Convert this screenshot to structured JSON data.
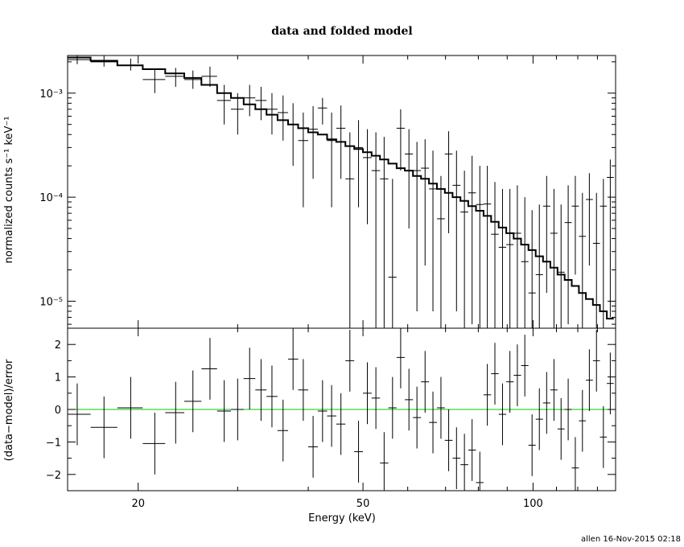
{
  "footer": "allen 16-Nov-2015 02:18",
  "chart_data": [
    {
      "type": "scatter",
      "title": "data and folded model",
      "xlabel": "",
      "ylabel": "normalized counts s⁻¹ keV⁻¹",
      "xscale": "log",
      "yscale": "log",
      "xlim": [
        15,
        140
      ],
      "ylim": [
        5.5e-06,
        0.0023
      ],
      "grid": false,
      "ytick_labels": [
        "10⁻³",
        "10⁻⁴",
        "10⁻⁵"
      ],
      "series": [
        {
          "kind": "data-crosses",
          "x": [
            15.6,
            17.4,
            19.4,
            21.4,
            23.3,
            25.0,
            26.8,
            28.4,
            30.0,
            31.5,
            33.0,
            34.5,
            36.1,
            37.6,
            39.2,
            40.8,
            42.4,
            44.0,
            45.7,
            47.4,
            49.1,
            50.9,
            52.7,
            54.5,
            56.4,
            58.3,
            60.3,
            62.3,
            64.4,
            66.5,
            68.7,
            70.9,
            73.2,
            75.6,
            78.0,
            80.5,
            83.0,
            85.6,
            88.3,
            91.0,
            93.8,
            96.7,
            99.6,
            102.6,
            105.7,
            108.9,
            112.1,
            115.4,
            118.8,
            122.3,
            125.8,
            129.5,
            133.2,
            137.0
          ],
          "y": [
            0.0021,
            0.002,
            0.00185,
            0.00135,
            0.00145,
            0.00135,
            0.00145,
            0.00085,
            0.0007,
            0.0009,
            0.00085,
            0.0007,
            0.00065,
            0.0005,
            0.00035,
            0.00045,
            0.00072,
            0.00035,
            0.00046,
            0.00015,
            0.0003,
            0.00024,
            0.00018,
            0.00015,
            1.7e-05,
            0.00046,
            0.00026,
            0.00018,
            0.00019,
            0.00012,
            6.2e-05,
            0.00026,
            0.00013,
            7.2e-05,
            0.00011,
            8.5e-05,
            8.6e-05,
            4.4e-05,
            3.3e-05,
            3.5e-05,
            4.5e-05,
            2.4e-05,
            1.2e-05,
            1.8e-05,
            8.2e-05,
            4.5e-05,
            1.9e-05,
            5.7e-05,
            8.2e-05,
            4.2e-05,
            9.5e-05,
            3.6e-05,
            8.2e-05,
            0.000155
          ],
          "ylow": [
            0.0019,
            0.0018,
            0.00165,
            0.001,
            0.00115,
            0.0011,
            0.00115,
            0.0005,
            0.0004,
            0.0006,
            0.00055,
            0.0004,
            0.00035,
            0.0002,
            8e-05,
            0.00015,
            0.0005,
            8e-05,
            0.00015,
            5.5e-06,
            8e-05,
            5.5e-05,
            5.5e-06,
            5.5e-06,
            5.5e-06,
            0.00018,
            5e-05,
            8e-06,
            2.2e-05,
            8e-06,
            5.5e-06,
            4.5e-05,
            8e-06,
            5.5e-06,
            6e-06,
            5.5e-06,
            5.5e-06,
            5.5e-06,
            5.5e-06,
            5.5e-06,
            5.5e-06,
            5.5e-06,
            5.5e-06,
            5.5e-06,
            1.2e-05,
            5.5e-06,
            5.5e-06,
            6e-06,
            1.8e-05,
            5.5e-06,
            2.2e-05,
            5.5e-06,
            5.5e-06,
            7e-06
          ],
          "yhigh": [
            0.0023,
            0.0023,
            0.00215,
            0.0017,
            0.00175,
            0.00165,
            0.0018,
            0.0012,
            0.001,
            0.0012,
            0.00115,
            0.001,
            0.00095,
            0.0008,
            0.00065,
            0.00075,
            0.0009,
            0.00065,
            0.00076,
            0.00042,
            0.00055,
            0.00045,
            0.00042,
            0.00038,
            0.00015,
            0.0007,
            0.00045,
            0.00034,
            0.00036,
            0.00028,
            0.00016,
            0.00043,
            0.00028,
            0.00018,
            0.00025,
            0.0002,
            0.0002,
            0.00014,
            0.00012,
            0.00012,
            0.00013,
            0.0001,
            7.5e-05,
            8.5e-05,
            0.00016,
            0.00012,
            8.5e-05,
            0.00013,
            0.00016,
            0.00011,
            0.00017,
            0.00011,
            0.00015,
            0.00023
          ]
        },
        {
          "kind": "folded-model-step",
          "y": [
            0.0022,
            0.00205,
            0.00185,
            0.0017,
            0.00155,
            0.0014,
            0.0012,
            0.001,
            0.0009,
            0.00078,
            0.0007,
            0.00062,
            0.00055,
            0.0005,
            0.00046,
            0.00042,
            0.0004,
            0.00036,
            0.00034,
            0.00031,
            0.00029,
            0.00027,
            0.00025,
            0.00023,
            0.00021,
            0.00019,
            0.00018,
            0.00016,
            0.00015,
            0.000135,
            0.00012,
            0.00011,
            0.0001,
            9.2e-05,
            8.2e-05,
            7.4e-05,
            6.6e-05,
            5.8e-05,
            5.1e-05,
            4.5e-05,
            4e-05,
            3.5e-05,
            3.1e-05,
            2.7e-05,
            2.4e-05,
            2.1e-05,
            1.8e-05,
            1.6e-05,
            1.4e-05,
            1.2e-05,
            1.05e-05,
            9.2e-06,
            8e-06,
            6.8e-06
          ]
        }
      ]
    },
    {
      "type": "scatter",
      "title": "",
      "xlabel": "Energy (keV)",
      "ylabel": "(data−model)/error",
      "xscale": "log",
      "xlim": [
        15,
        140
      ],
      "ylim": [
        -2.5,
        2.5
      ],
      "grid": false,
      "xtick_labels": [
        "20",
        "50",
        "100"
      ],
      "ytick_labels": [
        "2",
        "1",
        "0",
        "−1",
        "−2"
      ],
      "reference_line": {
        "y": 0,
        "color": "#00cc00"
      },
      "series": [
        {
          "kind": "residual-crosses",
          "y": [
            -0.15,
            -0.55,
            0.05,
            -1.05,
            -0.1,
            0.25,
            1.25,
            -0.05,
            0.0,
            0.95,
            0.6,
            0.4,
            -0.65,
            1.55,
            0.6,
            -1.15,
            -0.05,
            -0.2,
            -0.45,
            1.5,
            -1.3,
            0.5,
            0.35,
            -1.65,
            0.05,
            1.6,
            0.3,
            -0.25,
            0.85,
            -0.4,
            0.05,
            -0.95,
            -1.5,
            -1.7,
            -1.25,
            -2.25,
            0.45,
            1.1,
            -0.15,
            0.85,
            1.05,
            1.35,
            -1.1,
            -0.3,
            0.2,
            0.6,
            -0.6,
            0.0,
            -1.8,
            -0.35,
            0.9,
            1.5,
            -0.85,
            0.8
          ],
          "err": 0.95
        }
      ]
    }
  ]
}
